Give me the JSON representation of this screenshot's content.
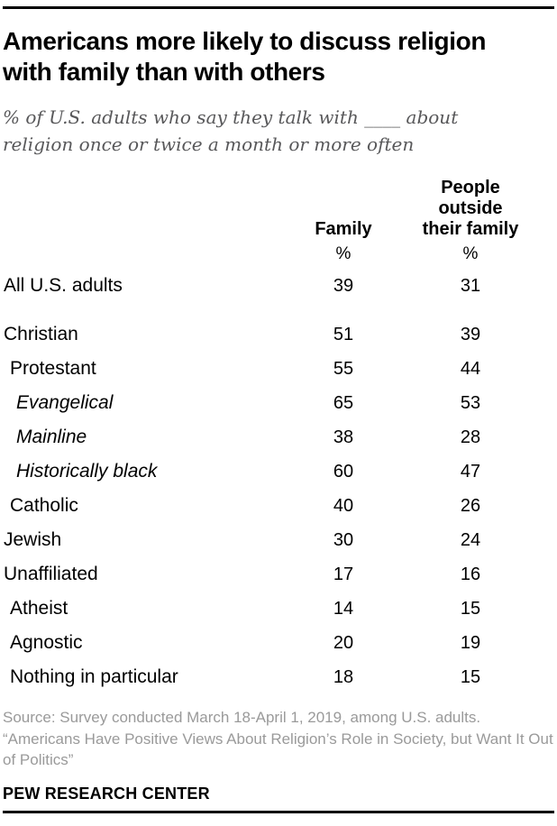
{
  "header": {
    "title": "Americans more likely to discuss religion with family than with others",
    "subtitle": "% of U.S. adults who say they talk with ____ about religion once or twice a month or more often"
  },
  "table": {
    "columns": [
      {
        "label": "Family",
        "unit": "%"
      },
      {
        "label": "People outside\ntheir family",
        "unit": "%"
      }
    ],
    "rows": [
      {
        "label": "All U.S. adults",
        "family": 39,
        "outside": 31
      },
      {
        "label": "Christian",
        "family": 51,
        "outside": 39
      },
      {
        "label": "Protestant",
        "family": 55,
        "outside": 44
      },
      {
        "label": "Evangelical",
        "family": 65,
        "outside": 53
      },
      {
        "label": "Mainline",
        "family": 38,
        "outside": 28
      },
      {
        "label": "Historically black",
        "family": 60,
        "outside": 47
      },
      {
        "label": "Catholic",
        "family": 40,
        "outside": 26
      },
      {
        "label": "Jewish",
        "family": 30,
        "outside": 24
      },
      {
        "label": "Unaffiliated",
        "family": 17,
        "outside": 16
      },
      {
        "label": "Atheist",
        "family": 14,
        "outside": 15
      },
      {
        "label": "Agnostic",
        "family": 20,
        "outside": 19
      },
      {
        "label": "Nothing in particular",
        "family": 18,
        "outside": 15
      }
    ]
  },
  "footer": {
    "source": "Source: Survey conducted March 18-April 1, 2019, among U.S. adults. “Americans Have Positive Views About Religion’s Role in Society, but Want It Out of Politics”",
    "brand": "PEW RESEARCH CENTER"
  },
  "colors": {
    "title": "#000000",
    "subtitle": "#58585a",
    "table_text": "#000000",
    "source": "#9a9a9a",
    "rule": "#000000"
  },
  "chart_data": {
    "type": "table",
    "title": "Americans more likely to discuss religion with family than with others",
    "subtitle": "% of U.S. adults who say they talk with ____ about religion once or twice a month or more often",
    "categories": [
      "All U.S. adults",
      "Christian",
      "Protestant",
      "Evangelical",
      "Mainline",
      "Historically black",
      "Catholic",
      "Jewish",
      "Unaffiliated",
      "Atheist",
      "Agnostic",
      "Nothing in particular"
    ],
    "series": [
      {
        "name": "Family",
        "values": [
          39,
          51,
          55,
          65,
          38,
          60,
          40,
          30,
          17,
          14,
          20,
          18
        ]
      },
      {
        "name": "People outside their family",
        "values": [
          31,
          39,
          44,
          53,
          28,
          47,
          26,
          24,
          16,
          15,
          19,
          15
        ]
      }
    ],
    "units": "%",
    "notes": "Indented rows are subgroups; Evangelical/Mainline/Historically black are Protestant traditions (italicized)."
  }
}
